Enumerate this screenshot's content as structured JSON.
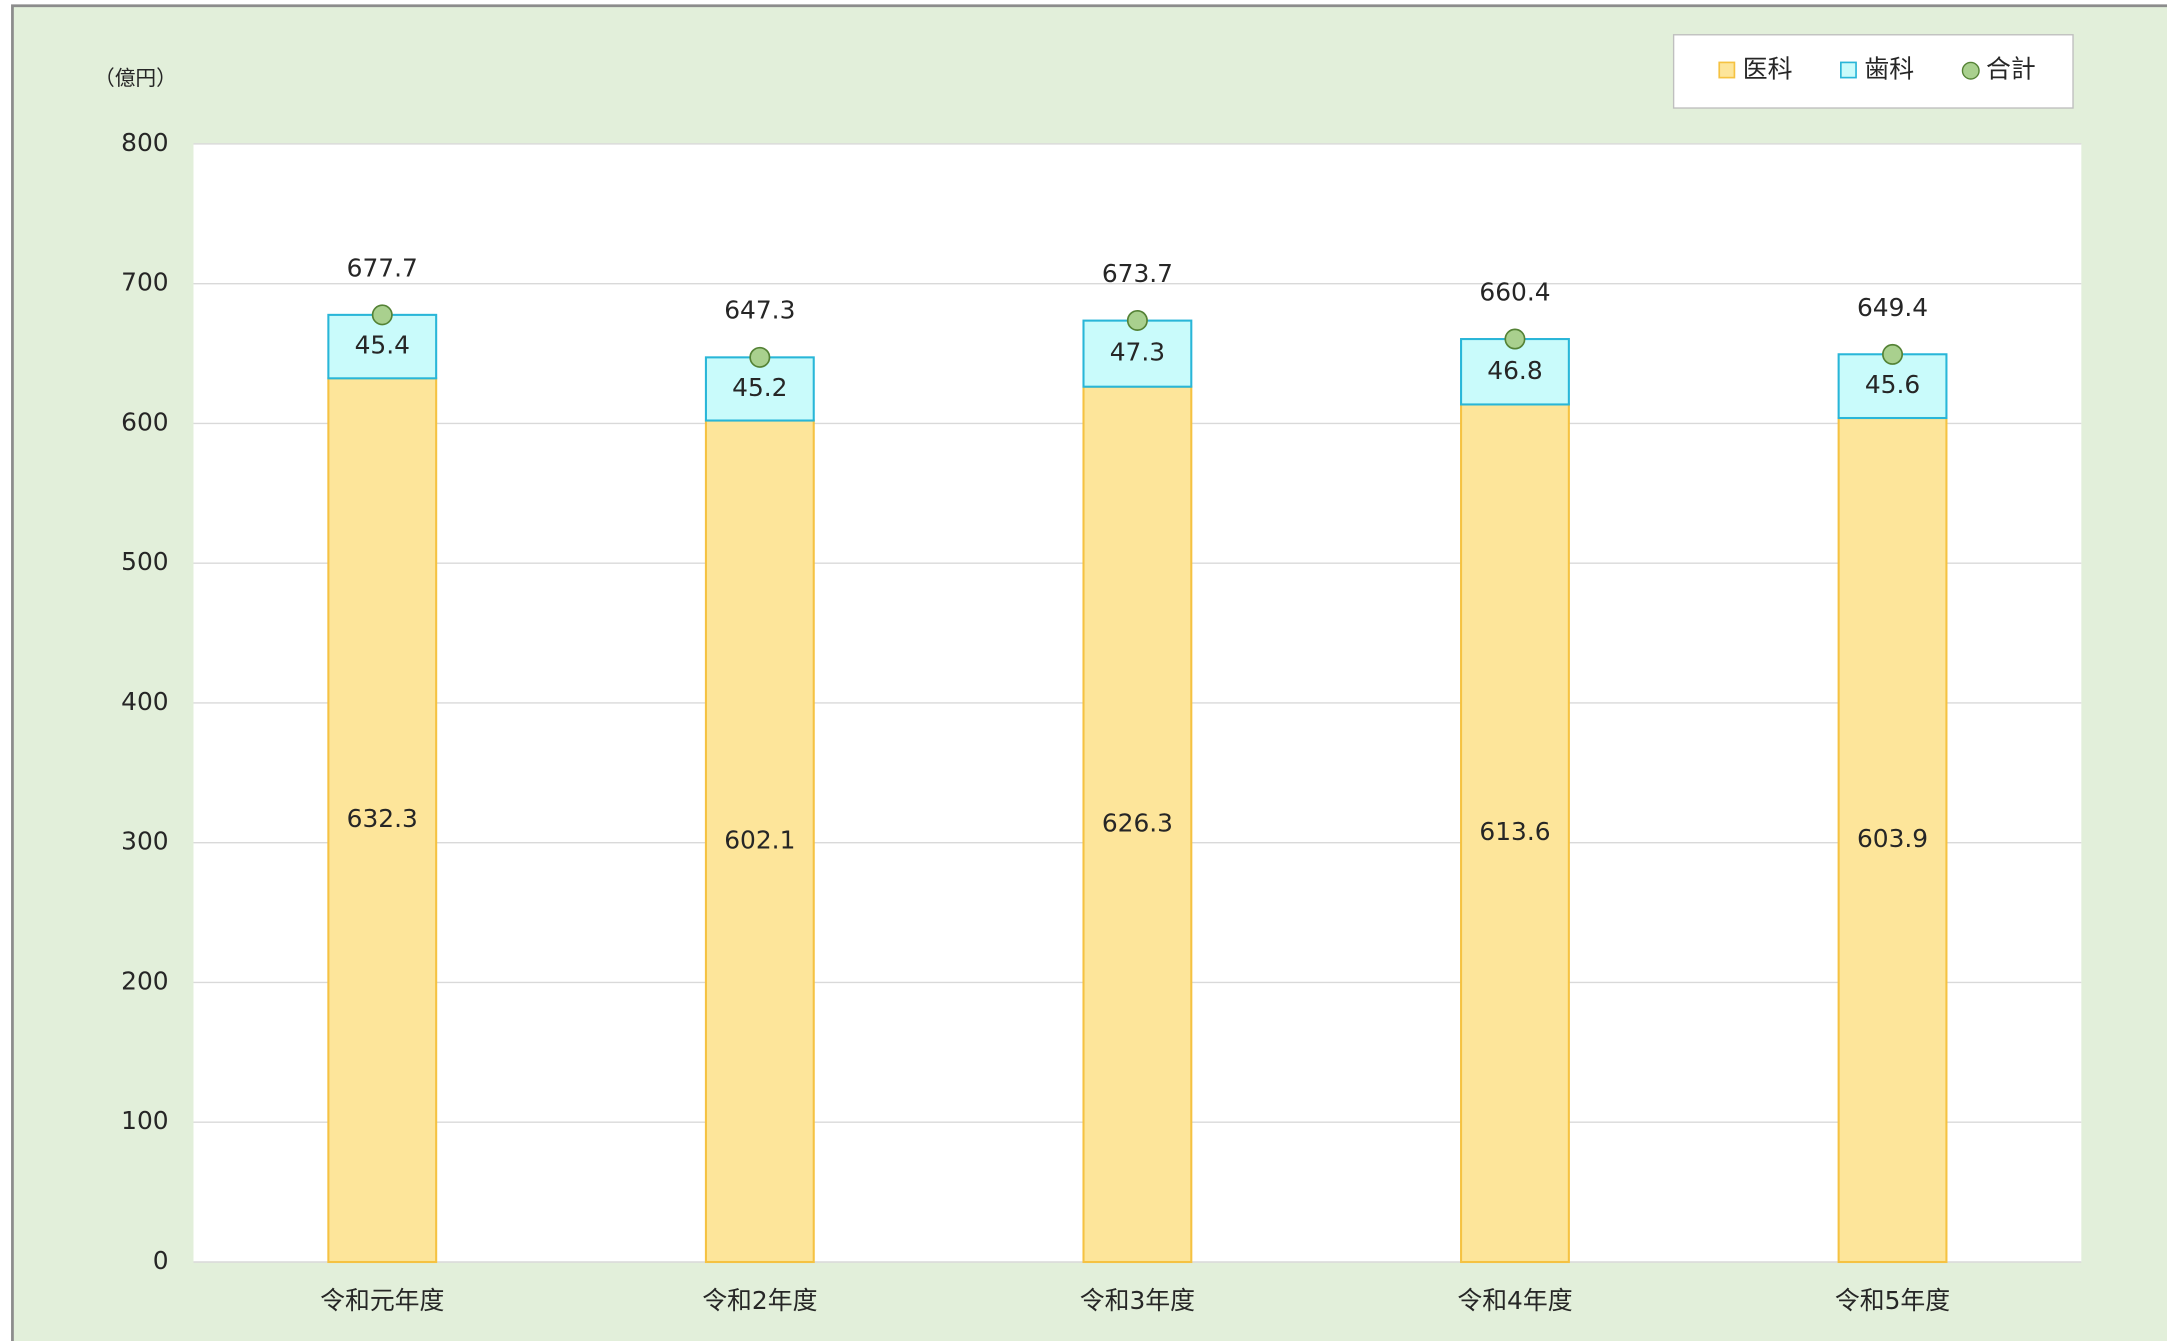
{
  "chart_data": {
    "type": "bar",
    "stacked": true,
    "y_unit_label": "（億円）",
    "categories": [
      "令和元年度",
      "令和2年度",
      "令和3年度",
      "令和4年度",
      "令和5年度"
    ],
    "series": [
      {
        "name": "医科",
        "color": "#fde59a",
        "edge_color": "#f5c242",
        "values": [
          632.3,
          602.1,
          626.3,
          613.6,
          603.9
        ]
      },
      {
        "name": "歯科",
        "color": "#c9fbfb",
        "edge_color": "#29b6d8",
        "values": [
          45.4,
          45.2,
          47.3,
          46.8,
          45.6
        ]
      },
      {
        "name": "合計",
        "type": "marker",
        "color": "#a9d08e",
        "edge_color": "#548235",
        "values": [
          677.7,
          647.3,
          673.7,
          660.4,
          649.4
        ]
      }
    ],
    "ylim": [
      0,
      800
    ],
    "yticks": [
      0,
      100,
      200,
      300,
      400,
      500,
      600,
      700,
      800
    ],
    "grid": true,
    "legend": "top-right"
  }
}
